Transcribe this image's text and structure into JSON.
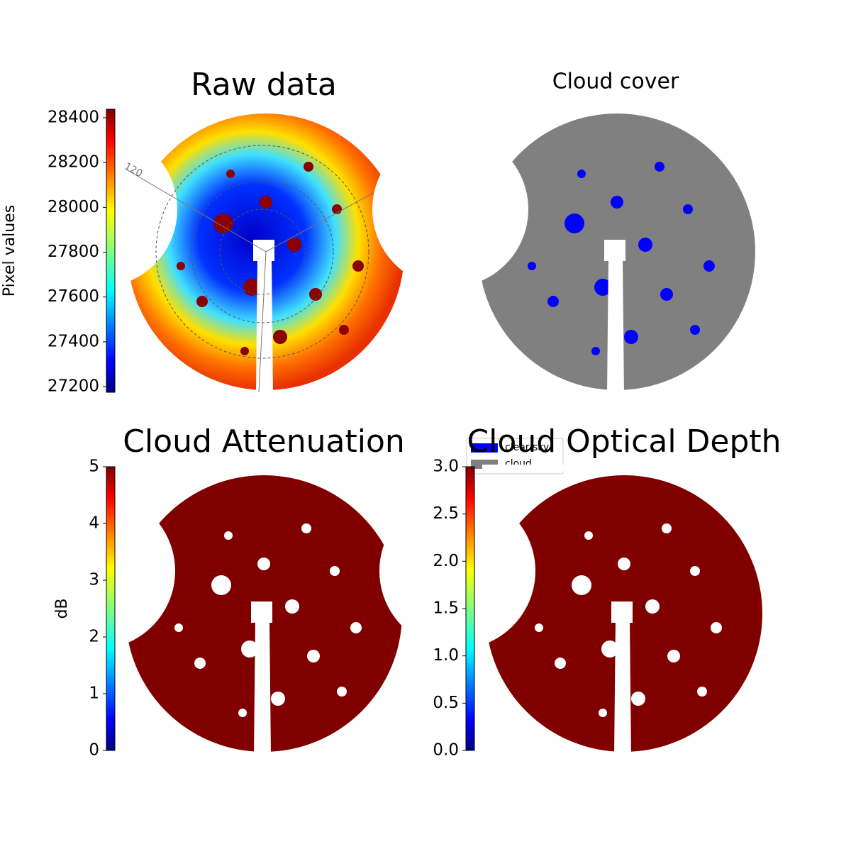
{
  "chart_data": [
    {
      "type": "image",
      "title": "Raw data",
      "colorbar_label": "Pixel values",
      "colormap": "jet",
      "ylim": [
        27175,
        28438
      ],
      "yticks": [
        27200,
        27400,
        27600,
        27800,
        28000,
        28200,
        28400
      ],
      "annotations": [
        "120"
      ]
    },
    {
      "type": "image",
      "title": "Cloud cover",
      "series": [
        {
          "name": "clear sky",
          "color": "#0000ff"
        },
        {
          "name": "cloud",
          "color": "#808080"
        }
      ]
    },
    {
      "type": "image",
      "title": "Cloud Attenuation",
      "colorbar_label": "dB",
      "colormap": "jet",
      "ylim": [
        0,
        5
      ],
      "yticks": [
        0,
        1,
        2,
        3,
        4,
        5
      ]
    },
    {
      "type": "image",
      "title": "Cloud Optical Depth",
      "colormap": "jet",
      "ylim": [
        0,
        3
      ],
      "yticks": [
        {
          "value": 0,
          "label": "0.0"
        },
        0.5,
        {
          "value": 1,
          "label": "1.0"
        },
        1.5,
        {
          "value": 2,
          "label": "2.0"
        },
        2.5,
        {
          "value": 3,
          "label": "3.0"
        }
      ]
    }
  ]
}
